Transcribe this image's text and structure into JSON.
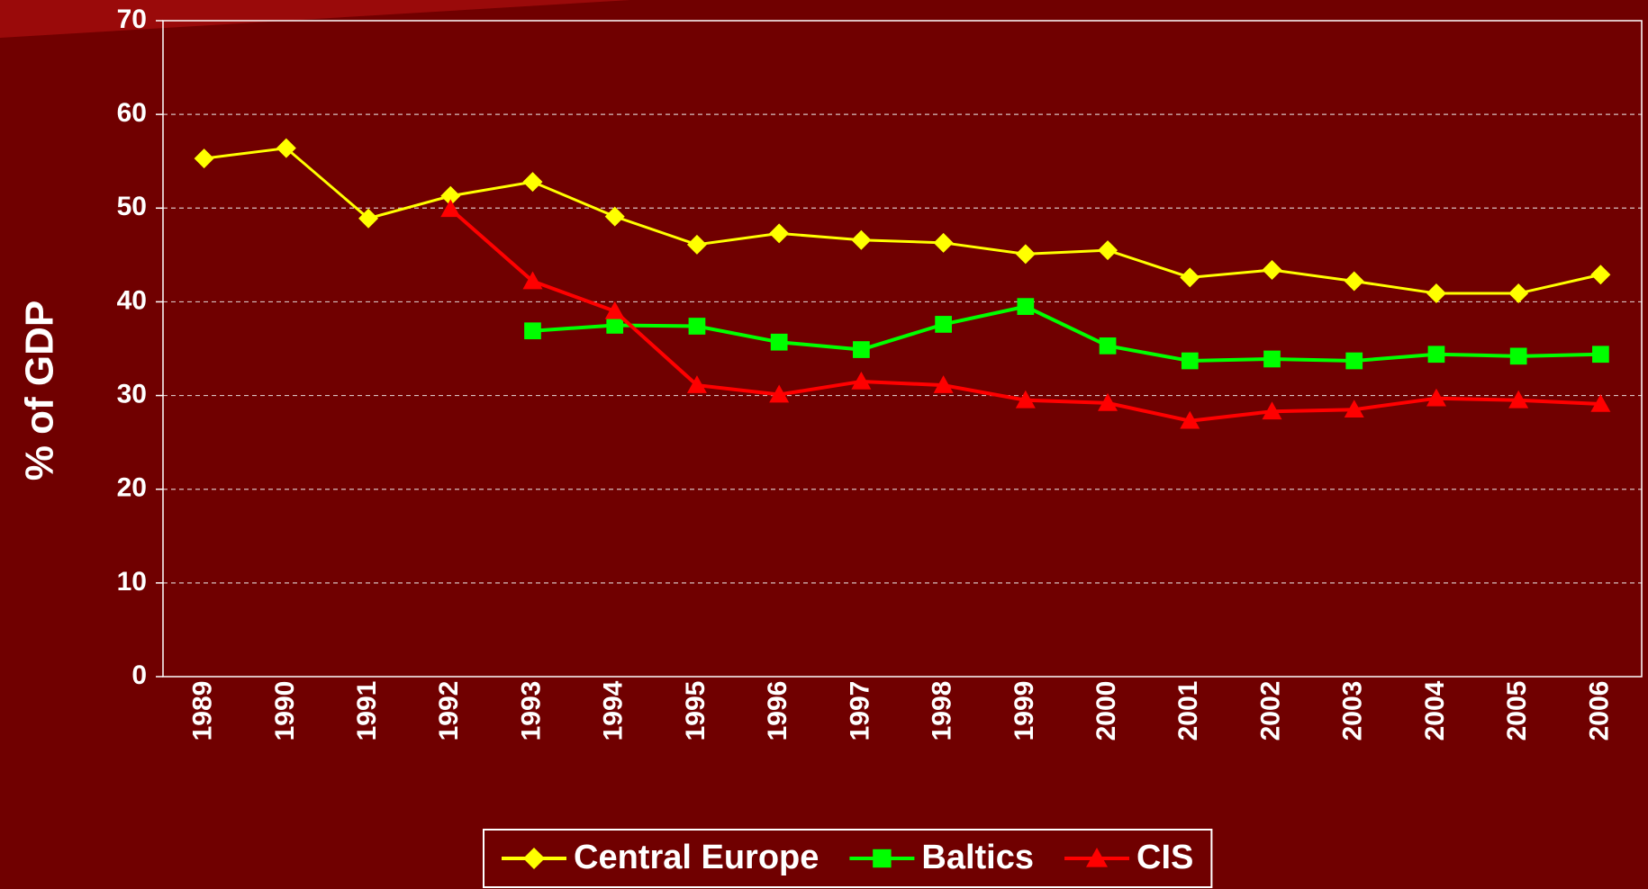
{
  "chart_data": {
    "type": "line",
    "ylabel": "% of GDP",
    "categories": [
      "1989",
      "1990",
      "1991",
      "1992",
      "1993",
      "1994",
      "1995",
      "1996",
      "1997",
      "1998",
      "1999",
      "2000",
      "2001",
      "2002",
      "2003",
      "2004",
      "2005",
      "2006"
    ],
    "series": [
      {
        "name": "Central Europe",
        "color": "#ffff00",
        "marker": "diamond",
        "values": [
          55.3,
          56.4,
          48.9,
          51.3,
          52.8,
          49.1,
          46.1,
          47.3,
          46.6,
          46.3,
          45.1,
          45.5,
          42.6,
          43.4,
          42.2,
          40.9,
          40.9,
          42.9
        ]
      },
      {
        "name": "Baltics",
        "color": "#00ff00",
        "marker": "square",
        "values": [
          null,
          null,
          null,
          null,
          36.9,
          37.5,
          37.4,
          35.7,
          34.9,
          37.6,
          39.5,
          35.3,
          33.7,
          33.9,
          33.7,
          34.4,
          34.2,
          34.4
        ]
      },
      {
        "name": "CIS",
        "color": "#ff0000",
        "marker": "triangle",
        "values": [
          null,
          null,
          null,
          49.9,
          42.2,
          39.0,
          31.1,
          30.1,
          31.5,
          31.1,
          29.5,
          29.2,
          27.3,
          28.3,
          28.5,
          29.7,
          29.5,
          29.1
        ]
      }
    ],
    "ylim": [
      0,
      70
    ],
    "yticks": [
      0,
      10,
      20,
      30,
      40,
      50,
      60,
      70
    ],
    "grid": true,
    "legend": "bottom"
  }
}
